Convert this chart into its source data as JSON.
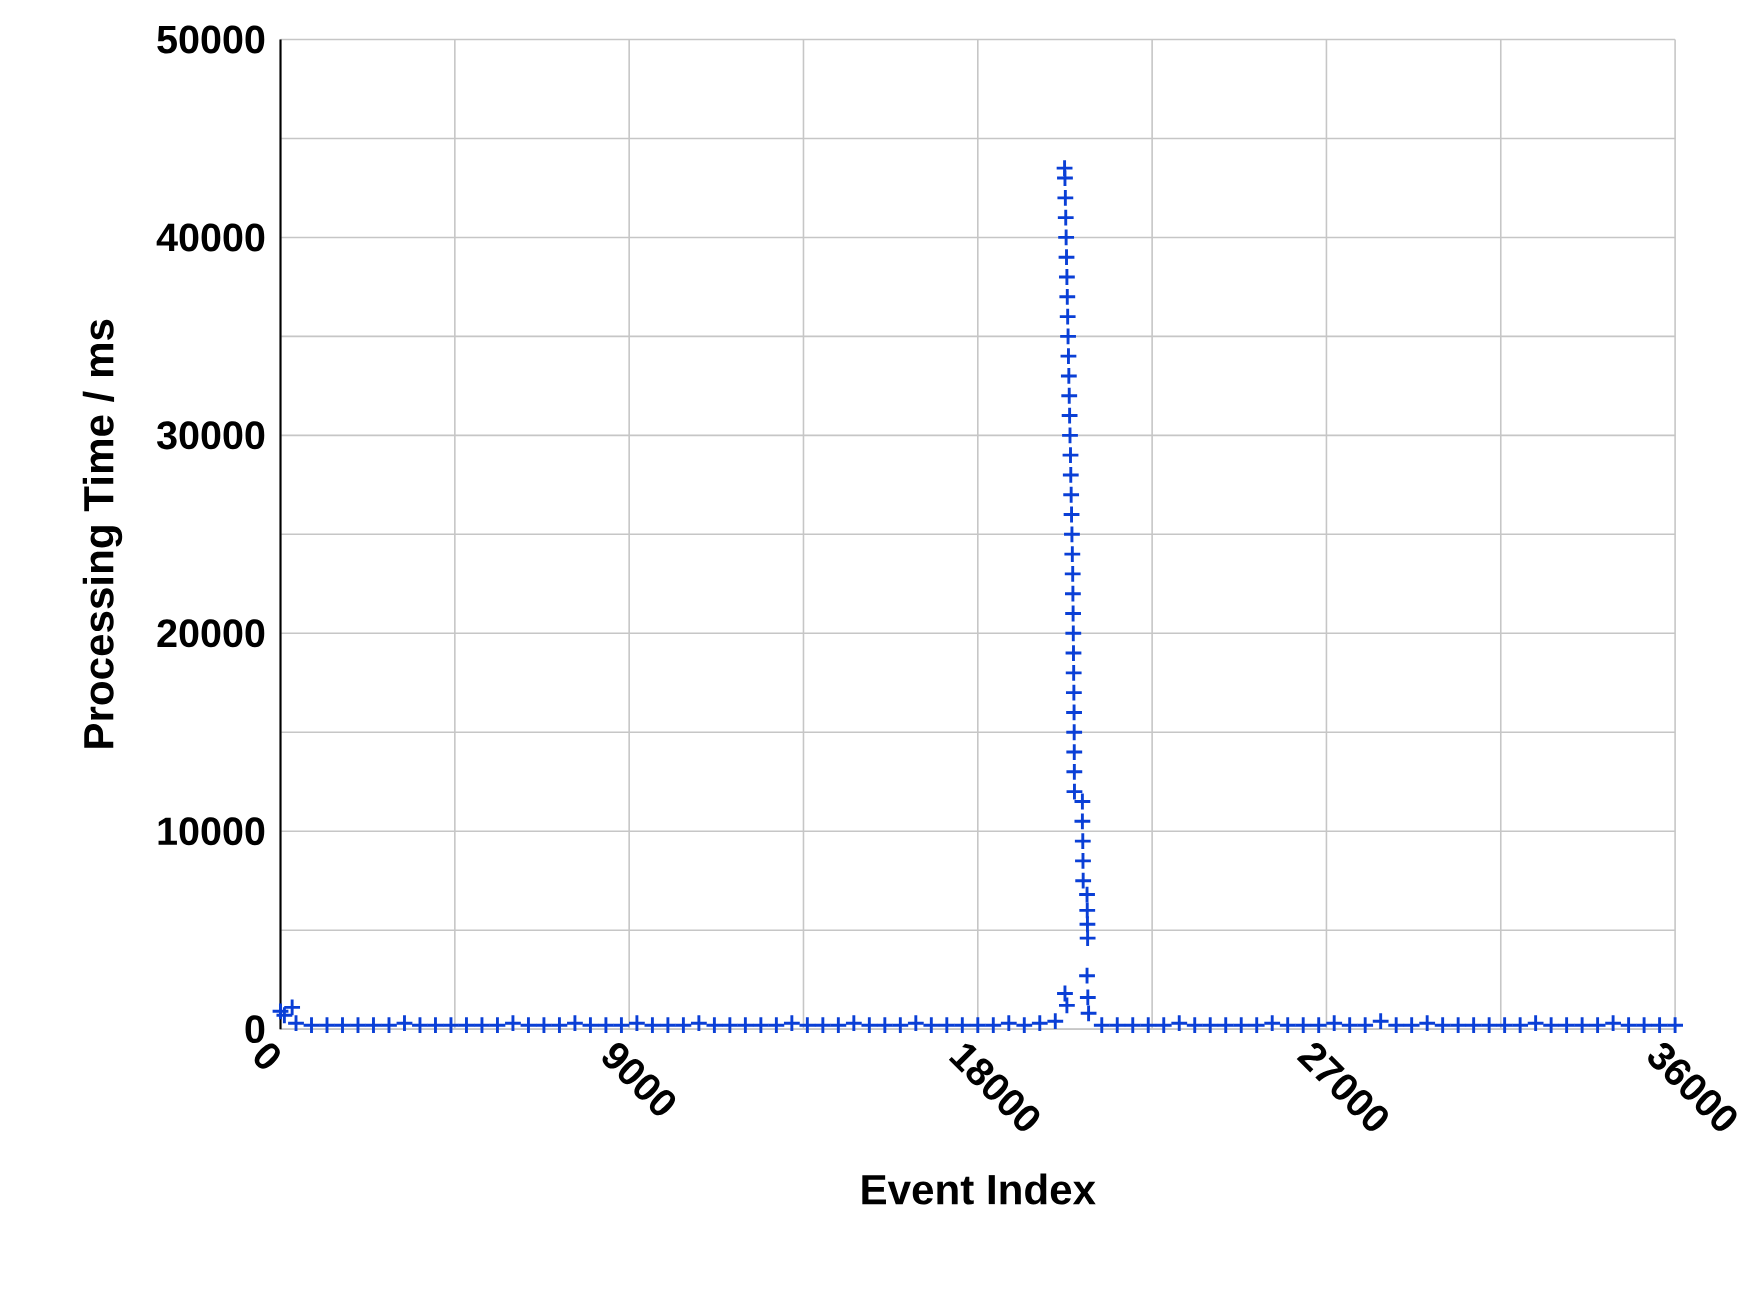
{
  "chart_data": {
    "type": "scatter",
    "xlabel": "Event Index",
    "ylabel": "Processing Time / ms",
    "xlim": [
      0,
      36000
    ],
    "ylim": [
      0,
      50000
    ],
    "xticks": [
      0,
      {
        "value": 4500,
        "label": null
      },
      9000,
      {
        "value": 13500,
        "label": null
      },
      18000,
      {
        "value": 22500,
        "label": null
      },
      27000,
      {
        "value": 31500,
        "label": null
      },
      36000
    ],
    "yticks": [
      0,
      {
        "value": 5000,
        "label": null
      },
      10000,
      {
        "value": 15000,
        "label": null
      },
      20000,
      {
        "value": 25000,
        "label": null
      },
      30000,
      {
        "value": 35000,
        "label": null
      },
      40000,
      {
        "value": 45000,
        "label": null
      },
      50000
    ],
    "grid": true,
    "marker": "cross",
    "series": [
      {
        "color": "#0a3fd6",
        "x": [
          0,
          100,
          300,
          400,
          800,
          1200,
          1600,
          2000,
          2400,
          2800,
          3200,
          3600,
          4000,
          4400,
          4800,
          5200,
          5600,
          6000,
          6400,
          6800,
          7200,
          7600,
          8000,
          8400,
          8800,
          9200,
          9600,
          10000,
          10400,
          10800,
          11200,
          11600,
          12000,
          12400,
          12800,
          13200,
          13600,
          14000,
          14400,
          14800,
          15200,
          15600,
          16000,
          16400,
          16800,
          17200,
          17600,
          18000,
          18400,
          18800,
          19200,
          19600,
          20000,
          20250,
          20300,
          20240,
          20250,
          20260,
          20270,
          20280,
          20290,
          20300,
          20310,
          20320,
          20330,
          20340,
          20350,
          20360,
          20370,
          20380,
          20393,
          20400,
          20410,
          20420,
          20430,
          20440,
          20450,
          20455,
          20460,
          20465,
          20470,
          20475,
          20480,
          20485,
          20488,
          20490,
          20492,
          20495,
          20700,
          20700,
          20710,
          20715,
          20720,
          20820,
          20825,
          20830,
          20835,
          20820,
          20840,
          20860,
          21200,
          21600,
          22000,
          22400,
          22800,
          23200,
          23600,
          24000,
          24400,
          24800,
          25200,
          25600,
          26000,
          26400,
          26800,
          27200,
          27600,
          28000,
          28400,
          28800,
          29200,
          29600,
          30000,
          30400,
          30800,
          31200,
          31600,
          32000,
          32400,
          32800,
          33200,
          33600,
          34000,
          34400,
          34800,
          35200,
          35600,
          36000
        ],
        "values": [
          900,
          700,
          1100,
          300,
          200,
          200,
          200,
          200,
          200,
          200,
          300,
          200,
          200,
          200,
          200,
          200,
          200,
          300,
          200,
          200,
          200,
          300,
          200,
          200,
          200,
          300,
          200,
          200,
          200,
          300,
          200,
          200,
          200,
          200,
          200,
          300,
          200,
          200,
          200,
          300,
          200,
          200,
          200,
          300,
          200,
          200,
          200,
          200,
          200,
          300,
          200,
          300,
          400,
          1800,
          1200,
          43500,
          43000,
          42000,
          41000,
          40000,
          39000,
          38000,
          37000,
          36000,
          35000,
          34000,
          33000,
          32000,
          31000,
          30000,
          29000,
          28000,
          27000,
          26000,
          25000,
          24000,
          23000,
          22000,
          21000,
          20000,
          19000,
          18000,
          17000,
          16000,
          15000,
          14000,
          13000,
          12000,
          11500,
          10500,
          9500,
          8500,
          7500,
          6800,
          6000,
          5300,
          4600,
          2700,
          1600,
          800,
          200,
          200,
          200,
          200,
          200,
          300,
          200,
          200,
          200,
          200,
          200,
          300,
          200,
          200,
          200,
          300,
          200,
          200,
          400,
          200,
          200,
          300,
          200,
          200,
          200,
          200,
          200,
          200,
          300,
          200,
          200,
          200,
          200,
          300,
          200,
          200,
          200,
          200
        ]
      }
    ]
  }
}
